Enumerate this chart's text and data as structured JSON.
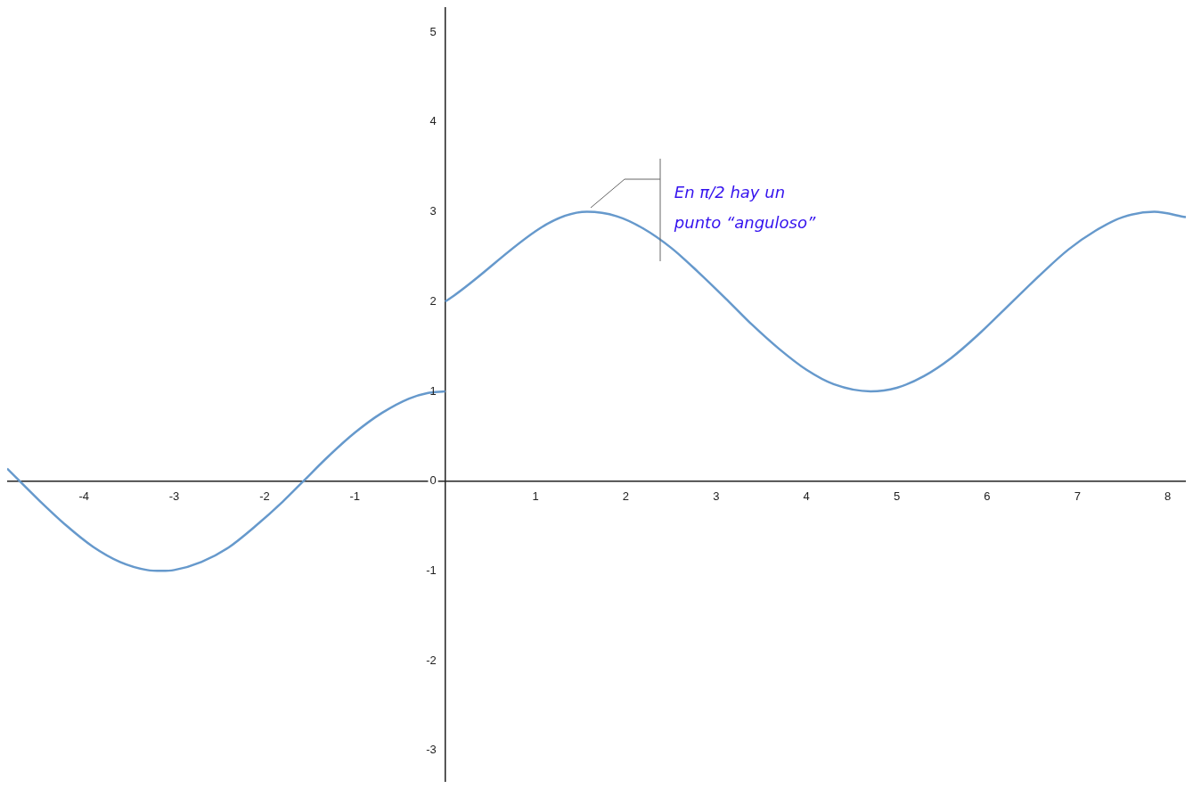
{
  "chart_data": {
    "type": "line",
    "marker": "none",
    "grid": false,
    "legend": false,
    "xlim": [
      -4.85,
      8.2
    ],
    "ylim": [
      -3.35,
      5.28
    ],
    "xticks": [
      -4,
      -3,
      -2,
      -1,
      1,
      2,
      3,
      4,
      5,
      6,
      7,
      8
    ],
    "yticks": [
      -3,
      -2,
      -1,
      0,
      1,
      2,
      3,
      4,
      5
    ],
    "series": [
      {
        "color": "#6699cc",
        "x": [
          -4.85,
          -4.5,
          -4.2,
          -3.9,
          -3.6,
          -3.3,
          -3.14,
          -3.0,
          -2.7,
          -2.4,
          -2.1,
          -1.8,
          -1.57,
          -1.3,
          -1.0,
          -0.7,
          -0.4,
          -0.2,
          0
        ],
        "values": [
          0.14,
          -0.21,
          -0.49,
          -0.73,
          -0.9,
          -0.99,
          -1,
          -0.99,
          -0.9,
          -0.74,
          -0.5,
          -0.23,
          0,
          0.27,
          0.54,
          0.76,
          0.92,
          0.98,
          1
        ]
      },
      {
        "color": "#6699cc",
        "x": [
          0,
          1.57,
          1.9,
          2.2,
          2.5,
          2.8,
          3.14,
          3.4,
          3.7,
          4.0,
          4.3,
          4.71,
          5.0,
          5.3,
          5.6,
          5.9,
          6.28,
          6.6,
          6.9,
          7.2,
          7.5,
          7.85,
          8.2
        ],
        "values": [
          2,
          3,
          2.95,
          2.81,
          2.6,
          2.33,
          2,
          1.74,
          1.47,
          1.24,
          1.08,
          1,
          1.04,
          1.17,
          1.37,
          1.63,
          2,
          2.31,
          2.58,
          2.79,
          2.94,
          3,
          2.94
        ]
      }
    ],
    "annotations": [
      {
        "text": "En π/2 hay un punto “anguloso”",
        "x": 1.57,
        "y": 3
      }
    ]
  }
}
